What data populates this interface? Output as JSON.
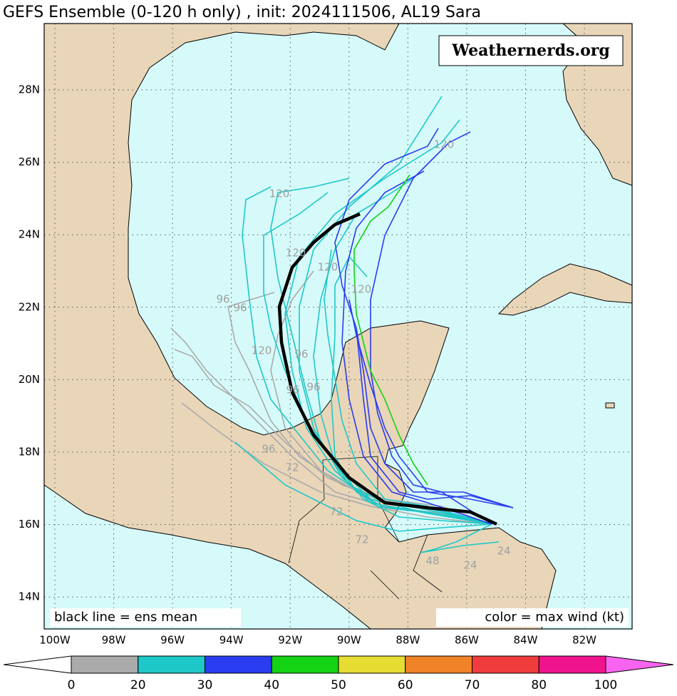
{
  "title": "GEFS Ensemble (0-120 h only) , init: 2024111506, AL19 Sara",
  "watermark": "Weathernerds.org",
  "notes": {
    "left": "black line = ens mean",
    "right": "color = max wind (kt)"
  },
  "lat_ticks": [
    {
      "value": 28,
      "label": "28N"
    },
    {
      "value": 26,
      "label": "26N"
    },
    {
      "value": 24,
      "label": "24N"
    },
    {
      "value": 22,
      "label": "22N"
    },
    {
      "value": 20,
      "label": "20N"
    },
    {
      "value": 18,
      "label": "18N"
    },
    {
      "value": 16,
      "label": "16N"
    },
    {
      "value": 14,
      "label": "14N"
    }
  ],
  "lon_ticks": [
    {
      "value": -100,
      "label": "100W"
    },
    {
      "value": -98,
      "label": "98W"
    },
    {
      "value": -96,
      "label": "96W"
    },
    {
      "value": -94,
      "label": "94W"
    },
    {
      "value": -92,
      "label": "92W"
    },
    {
      "value": -90,
      "label": "90W"
    },
    {
      "value": -88,
      "label": "88W"
    },
    {
      "value": -86,
      "label": "86W"
    },
    {
      "value": -84,
      "label": "84W"
    },
    {
      "value": -82,
      "label": "82W"
    }
  ],
  "colorbar": {
    "bins": [
      0,
      20,
      30,
      40,
      50,
      60,
      70,
      80,
      100
    ],
    "colors": [
      "#aaaaaa",
      "#1ec8c8",
      "#2a3cf0",
      "#14d214",
      "#e6dc32",
      "#f08228",
      "#f03c3c",
      "#f0148c"
    ],
    "under_color": "#ffffff",
    "over_color": "#f864f0"
  },
  "hour_labels": [
    120,
    120,
    120,
    120,
    120,
    120,
    96,
    96,
    96,
    96,
    96,
    96,
    72,
    72,
    72,
    48,
    24,
    24
  ]
}
